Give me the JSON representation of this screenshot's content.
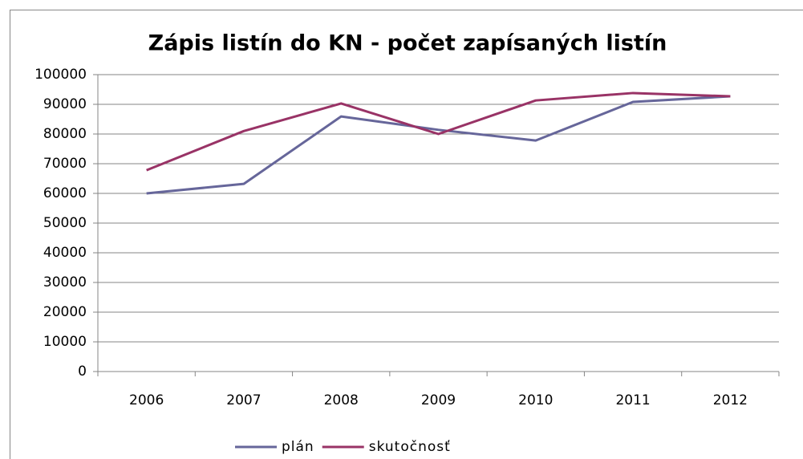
{
  "chart_data": {
    "type": "line",
    "title": "Zápis listín do KN - počet zapísaných listín",
    "categories": [
      "2006",
      "2007",
      "2008",
      "2009",
      "2010",
      "2011",
      "2012"
    ],
    "series": [
      {
        "name": "plán",
        "color": "#66669a",
        "values": [
          60000,
          63200,
          85900,
          81400,
          77800,
          90800,
          92700
        ]
      },
      {
        "name": "skutočnosť",
        "color": "#993366",
        "values": [
          67800,
          81000,
          90300,
          80000,
          91300,
          93800,
          92700
        ]
      }
    ],
    "ylim": [
      0,
      100000
    ],
    "yticks": [
      0,
      10000,
      20000,
      30000,
      40000,
      50000,
      60000,
      70000,
      80000,
      90000,
      100000
    ],
    "grid": true,
    "legend": "bottom"
  }
}
